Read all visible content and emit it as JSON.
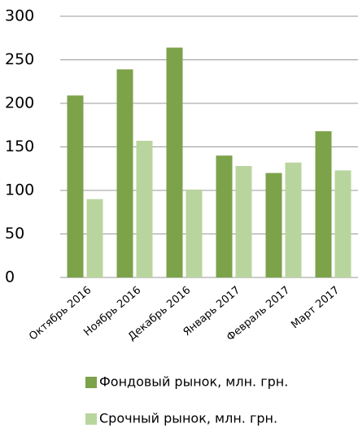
{
  "chart_data": {
    "type": "bar",
    "categories": [
      "Октябрь 2016",
      "Ноябрь 2016",
      "Декабрь 2016",
      "Январь 2017",
      "Февраль 2017",
      "Март 2017"
    ],
    "series": [
      {
        "name": "Фондовый рынок, млн. грн.",
        "color": "#7ca24a",
        "values": [
          209,
          239,
          264,
          140,
          120,
          168
        ]
      },
      {
        "name": "Срочный рынок, млн. грн.",
        "color": "#b9d59e",
        "values": [
          90,
          157,
          101,
          128,
          132,
          123
        ]
      }
    ],
    "ylim": [
      0,
      300
    ],
    "yticks": [
      0,
      50,
      100,
      150,
      200,
      250,
      300
    ],
    "grid": true
  }
}
